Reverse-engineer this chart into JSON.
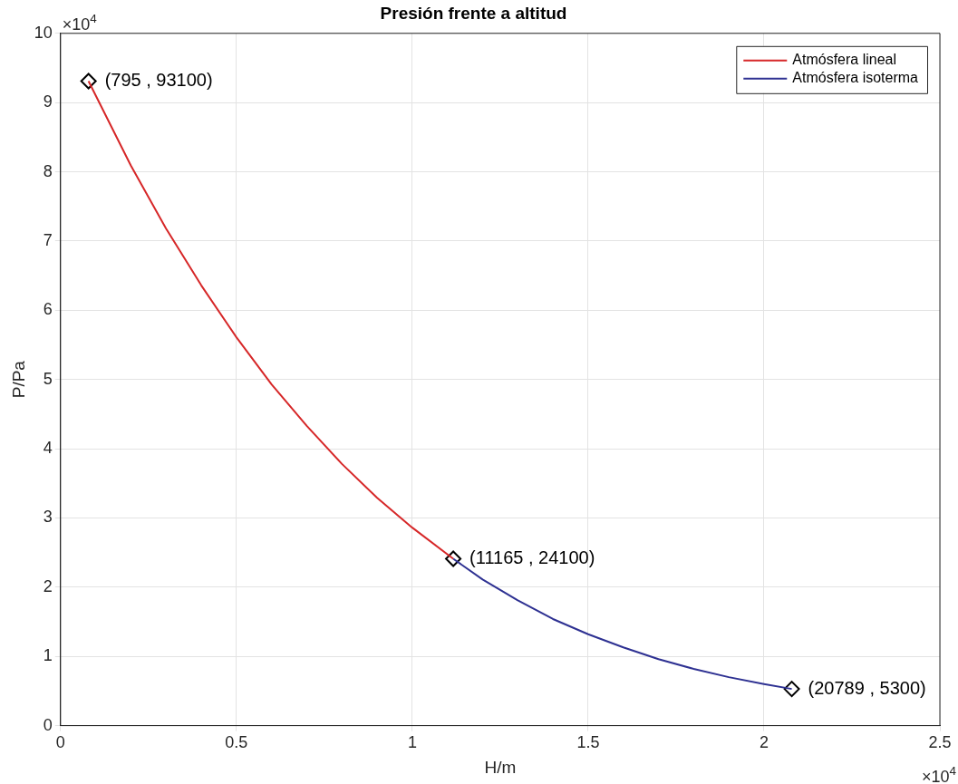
{
  "chart_data": {
    "type": "line",
    "title": "Presión frente a altitud",
    "xlabel": "H/m",
    "ylabel": "P/Pa",
    "xlim": [
      0,
      2.5
    ],
    "xticks": [
      0,
      0.5,
      1,
      1.5,
      2,
      2.5
    ],
    "ylim": [
      0,
      10
    ],
    "yticks": [
      0,
      1,
      2,
      3,
      4,
      5,
      6,
      7,
      8,
      9,
      10
    ],
    "grid": true,
    "legend": "top right",
    "line_style": "solid",
    "annotations": [
      "×10$^{4}$",
      "×10$^{4}$"
    ],
    "series": [
      {
        "name": "Atmósfera lineal",
        "color": "#d62728",
        "x": [
          0.0795,
          0.2,
          0.3,
          0.4,
          0.5,
          0.6,
          0.7,
          0.8,
          0.9,
          1.0,
          1.1165
        ],
        "values": [
          9.31,
          8.09,
          7.18,
          6.36,
          5.61,
          4.93,
          4.33,
          3.78,
          3.29,
          2.86,
          2.41
        ]
      },
      {
        "name": "Atmósfera isoterma",
        "color": "#2e3192",
        "x": [
          1.1165,
          1.2,
          1.3,
          1.4,
          1.5,
          1.6,
          1.7,
          1.8,
          1.9,
          2.0,
          2.0789
        ],
        "values": [
          2.41,
          2.11,
          1.81,
          1.54,
          1.32,
          1.13,
          0.96,
          0.82,
          0.7,
          0.6,
          0.53
        ]
      },
      {
        "type": "scatter",
        "color": "#000000",
        "marker": "diamond",
        "x": [
          0.0795,
          1.1165,
          2.0789
        ],
        "values": [
          9.31,
          2.41,
          0.53
        ],
        "value_labels": [
          "(795 , 93100)",
          "(11165 , 24100)",
          "(20789 , 5300)"
        ]
      }
    ]
  }
}
